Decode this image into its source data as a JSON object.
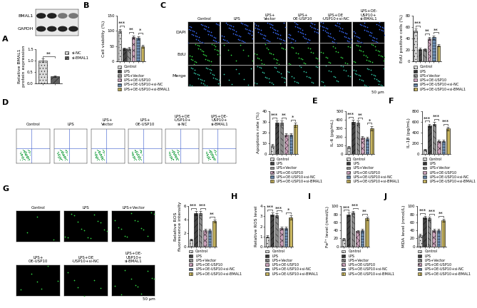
{
  "chart_data": [
    {
      "panel": "A",
      "type": "bar",
      "categories": [
        "si-NC",
        "si-BMAL1"
      ],
      "values": [
        1.0,
        0.3
      ],
      "errors": [
        0.08,
        0.03
      ],
      "colors": [
        "#d9d9d9",
        "#606060"
      ],
      "ylabel": "Relative BMAL1\nprotein expression",
      "ylim": [
        0,
        1.5
      ],
      "yticks": [
        {
          "value": 0,
          "label": "0.0"
        },
        {
          "value": 0.5,
          "label": "0.5"
        },
        {
          "value": 1.0,
          "label": "1.0"
        },
        {
          "value": 1.5,
          "label": "1.5"
        }
      ],
      "tick_labels": "y",
      "legend": "right",
      "annotations": [
        {
          "from": 0,
          "to": 1,
          "text": "**"
        }
      ]
    },
    {
      "panel": "B",
      "type": "bar",
      "categories": [
        "Control",
        "LPS",
        "LPS+Vector",
        "LPS+OE-USP10",
        "LPS+OE-USP10+si-NC",
        "LPS+OE-USP10+si-BMAL1"
      ],
      "values": [
        100,
        42,
        43,
        80,
        78,
        50
      ],
      "errors": [
        6,
        4,
        4,
        5,
        5,
        5
      ],
      "colors": [
        "#d9d9d9",
        "#404040",
        "#8c8c8c",
        "#c9a0b8",
        "#6b8bb0",
        "#c8b560"
      ],
      "ylabel": "Cell viability (%)",
      "ylim": [
        0,
        150
      ],
      "yticks": [
        0,
        50,
        100,
        150
      ],
      "tick_labels": "y",
      "legend": "below",
      "annotations": [
        {
          "from": 0,
          "to": 1,
          "text": "***"
        },
        {
          "from": 2,
          "to": 3,
          "text": "**"
        },
        {
          "from": 4,
          "to": 5,
          "text": "*"
        }
      ]
    },
    {
      "type": "bar",
      "categories": [
        "Control",
        "LPS",
        "LPS+Vector",
        "LPS+OE-USP10",
        "LPS+OE-USP10+si-NC",
        "LPS+OE-USP10+si-BMAL1"
      ],
      "values": [
        54,
        22,
        21,
        40,
        42,
        28
      ],
      "errors": [
        3,
        2,
        2,
        3,
        3,
        2
      ],
      "colors": [
        "#d9d9d9",
        "#404040",
        "#8c8c8c",
        "#c9a0b8",
        "#6b8bb0",
        "#c8b560"
      ],
      "ylabel": "EdU positive cells (%)",
      "ylim": [
        0,
        80
      ],
      "yticks": [
        0,
        20,
        40,
        60,
        80
      ],
      "tick_labels": "y",
      "legend": "below",
      "annotations": [
        {
          "from": 0,
          "to": 1,
          "text": "***"
        },
        {
          "from": 2,
          "to": 3,
          "text": "**"
        },
        {
          "from": 4,
          "to": 5,
          "text": "**"
        }
      ]
    },
    {
      "type": "bar",
      "categories": [
        "Control",
        "LPS",
        "LPS+Vector",
        "LPS+OE-USP10",
        "LPS+OE-USP10+si-NC",
        "LPS+OE-USP10+si-BMAL1"
      ],
      "values": [
        8,
        29,
        29,
        18,
        18,
        27
      ],
      "errors": [
        1.5,
        2,
        2,
        1.5,
        1.5,
        2
      ],
      "colors": [
        "#d9d9d9",
        "#404040",
        "#8c8c8c",
        "#c9a0b8",
        "#6b8bb0",
        "#c8b560"
      ],
      "ylabel": "Apoptosis rate (%)",
      "ylim": [
        0,
        40
      ],
      "yticks": [
        0,
        10,
        20,
        30,
        40
      ],
      "tick_labels": "y",
      "legend": "below",
      "annotations": [
        {
          "from": 0,
          "to": 1,
          "text": "***"
        },
        {
          "from": 2,
          "to": 3,
          "text": "**"
        },
        {
          "from": 4,
          "to": 5,
          "text": "*"
        }
      ]
    },
    {
      "panel": "E",
      "type": "bar",
      "categories": [
        "Control",
        "LPS",
        "LPS+Vector",
        "LPS+OE-USP10",
        "LPS+OE-USP10+si-NC",
        "LPS+OE-USP10+si-BMAL1"
      ],
      "values": [
        80,
        370,
        360,
        190,
        180,
        300
      ],
      "errors": [
        15,
        25,
        25,
        20,
        20,
        25
      ],
      "colors": [
        "#d9d9d9",
        "#404040",
        "#8c8c8c",
        "#c9a0b8",
        "#6b8bb0",
        "#c8b560"
      ],
      "ylabel": "IL-6 (pg/mL)",
      "ylim": [
        0,
        500
      ],
      "yticks": [
        0,
        100,
        200,
        300,
        400,
        500
      ],
      "tick_labels": "y",
      "legend": "below",
      "annotations": [
        {
          "from": 0,
          "to": 1,
          "text": "***"
        },
        {
          "from": 2,
          "to": 3,
          "text": "**"
        },
        {
          "from": 4,
          "to": 5,
          "text": "*"
        }
      ]
    },
    {
      "panel": "F",
      "type": "bar",
      "categories": [
        "Control",
        "LPS",
        "LPS+Vector",
        "LPS+OE-USP10",
        "LPS+OE-USP10+si-NC",
        "LPS+OE-USP10+si-BMAL1"
      ],
      "values": [
        80,
        530,
        560,
        240,
        240,
        470
      ],
      "errors": [
        15,
        30,
        30,
        20,
        20,
        30
      ],
      "colors": [
        "#d9d9d9",
        "#404040",
        "#8c8c8c",
        "#c9a0b8",
        "#6b8bb0",
        "#c8b560"
      ],
      "ylabel": "IL-1β (pg/mL)",
      "ylim": [
        0,
        800
      ],
      "yticks": [
        0,
        200,
        400,
        600,
        800
      ],
      "tick_labels": "y",
      "legend": "below",
      "annotations": [
        {
          "from": 0,
          "to": 1,
          "text": "***"
        },
        {
          "from": 2,
          "to": 3,
          "text": "***"
        },
        {
          "from": 4,
          "to": 5,
          "text": "***"
        }
      ]
    },
    {
      "type": "bar",
      "categories": [
        "Control",
        "LPS",
        "LPS+Vector",
        "LPS+OE-USP10",
        "LPS+OE-USP10+si-NC",
        "LPS+OE-USP10+si-BMAL1"
      ],
      "values": [
        1.0,
        5.0,
        5.0,
        2.4,
        2.4,
        3.8
      ],
      "errors": [
        0.1,
        0.3,
        0.3,
        0.2,
        0.2,
        0.2
      ],
      "colors": [
        "#d9d9d9",
        "#404040",
        "#8c8c8c",
        "#c9a0b8",
        "#6b8bb0",
        "#c8b560"
      ],
      "ylabel": "Relative ROS\nfluorescence intensity",
      "ylim": [
        0,
        6
      ],
      "yticks": [
        0,
        2,
        4,
        6
      ],
      "tick_labels": "y",
      "legend": "below",
      "annotations": [
        {
          "from": 0,
          "to": 1,
          "text": "***"
        },
        {
          "from": 2,
          "to": 3,
          "text": "***"
        },
        {
          "from": 4,
          "to": 5,
          "text": "**"
        }
      ]
    },
    {
      "panel": "H",
      "type": "bar",
      "categories": [
        "Control",
        "LPS",
        "LPS+Vector",
        "LPS+OE-USP10",
        "LPS+OE-USP10+si-NC",
        "LPS+OE-USP10+si-BMAL1"
      ],
      "values": [
        1.0,
        3.2,
        3.1,
        1.8,
        1.8,
        2.9
      ],
      "errors": [
        0.1,
        0.2,
        0.2,
        0.15,
        0.15,
        0.2
      ],
      "colors": [
        "#d9d9d9",
        "#404040",
        "#8c8c8c",
        "#c9a0b8",
        "#6b8bb0",
        "#c8b560"
      ],
      "ylabel": "Relative ROS level",
      "ylim": [
        0,
        4
      ],
      "yticks": [
        0,
        1,
        2,
        3,
        4
      ],
      "tick_labels": "y",
      "legend": "below",
      "annotations": [
        {
          "from": 0,
          "to": 1,
          "text": "***"
        },
        {
          "from": 2,
          "to": 3,
          "text": "***"
        },
        {
          "from": 4,
          "to": 5,
          "text": "*"
        }
      ]
    },
    {
      "panel": "I",
      "type": "bar",
      "categories": [
        "Control",
        "LPS",
        "LPS+Vector",
        "LPS+OE-USP10",
        "LPS+OE-USP10+si-NC",
        "LPS+OE-USP10+si-BMAL1"
      ],
      "values": [
        18,
        80,
        85,
        38,
        40,
        70
      ],
      "errors": [
        2,
        4,
        4,
        3,
        3,
        4
      ],
      "colors": [
        "#d9d9d9",
        "#404040",
        "#8c8c8c",
        "#c9a0b8",
        "#6b8bb0",
        "#c8b560"
      ],
      "ylabel": "Fe²⁺ level (nmol/L)",
      "ylim": [
        0,
        100
      ],
      "yticks": [
        0,
        20,
        40,
        60,
        80,
        100
      ],
      "tick_labels": "y",
      "legend": "below",
      "annotations": [
        {
          "from": 0,
          "to": 1,
          "text": "***"
        },
        {
          "from": 2,
          "to": 3,
          "text": "***"
        },
        {
          "from": 4,
          "to": 5,
          "text": "**"
        }
      ]
    },
    {
      "panel": "J",
      "type": "bar",
      "categories": [
        "Control",
        "LPS",
        "LPS+Vector",
        "LPS+OE-USP10",
        "LPS+OE-USP10+si-NC",
        "LPS+OE-USP10+si-BMAL1"
      ],
      "values": [
        28,
        72,
        70,
        40,
        40,
        65
      ],
      "errors": [
        3,
        4,
        4,
        3,
        3,
        4
      ],
      "colors": [
        "#d9d9d9",
        "#404040",
        "#8c8c8c",
        "#c9a0b8",
        "#6b8bb0",
        "#c8b560"
      ],
      "ylabel": "MDA level (nmol/L)",
      "ylim": [
        0,
        100
      ],
      "yticks": [
        0,
        20,
        40,
        60,
        80,
        100
      ],
      "tick_labels": "y",
      "legend": "below",
      "annotations": [
        {
          "from": 0,
          "to": 1,
          "text": "***"
        },
        {
          "from": 2,
          "to": 3,
          "text": "***"
        },
        {
          "from": 4,
          "to": 5,
          "text": "**"
        }
      ]
    }
  ],
  "blot": {
    "labels": [
      "BMAL1",
      "GAPDH"
    ]
  },
  "edu_images": {
    "panel": "C",
    "columns": [
      "Control",
      "LPS",
      "LPS+\nVector",
      "LPS+\nOE-USP10",
      "LPS+OE\n-USP10+si-NC",
      "LPS+OE-\nUSP10+\nsi-BMAL1"
    ],
    "rows": [
      "DAPI",
      "EdU",
      "Merge"
    ],
    "scale_bar": "50 μm"
  },
  "flow_plots": {
    "panel": "D",
    "columns": [
      "Control",
      "LPS",
      "LPS+\nVector",
      "LPS+\nOE-USP10",
      "LPS+OE\n-USP10+\nsi-NC",
      "LPS+OE-\nUSP10+\nsi-BMAL1"
    ]
  },
  "ros_images": {
    "panel": "G",
    "labels": [
      "Control",
      "LPS",
      "LPS+Vector",
      "LPS+\nOE-USP10",
      "LPS+OE\n-USP10+si-NC",
      "LPS+OE-\nUSP10+\nsi-BMAL1"
    ],
    "scale_bar": "50 μm"
  }
}
